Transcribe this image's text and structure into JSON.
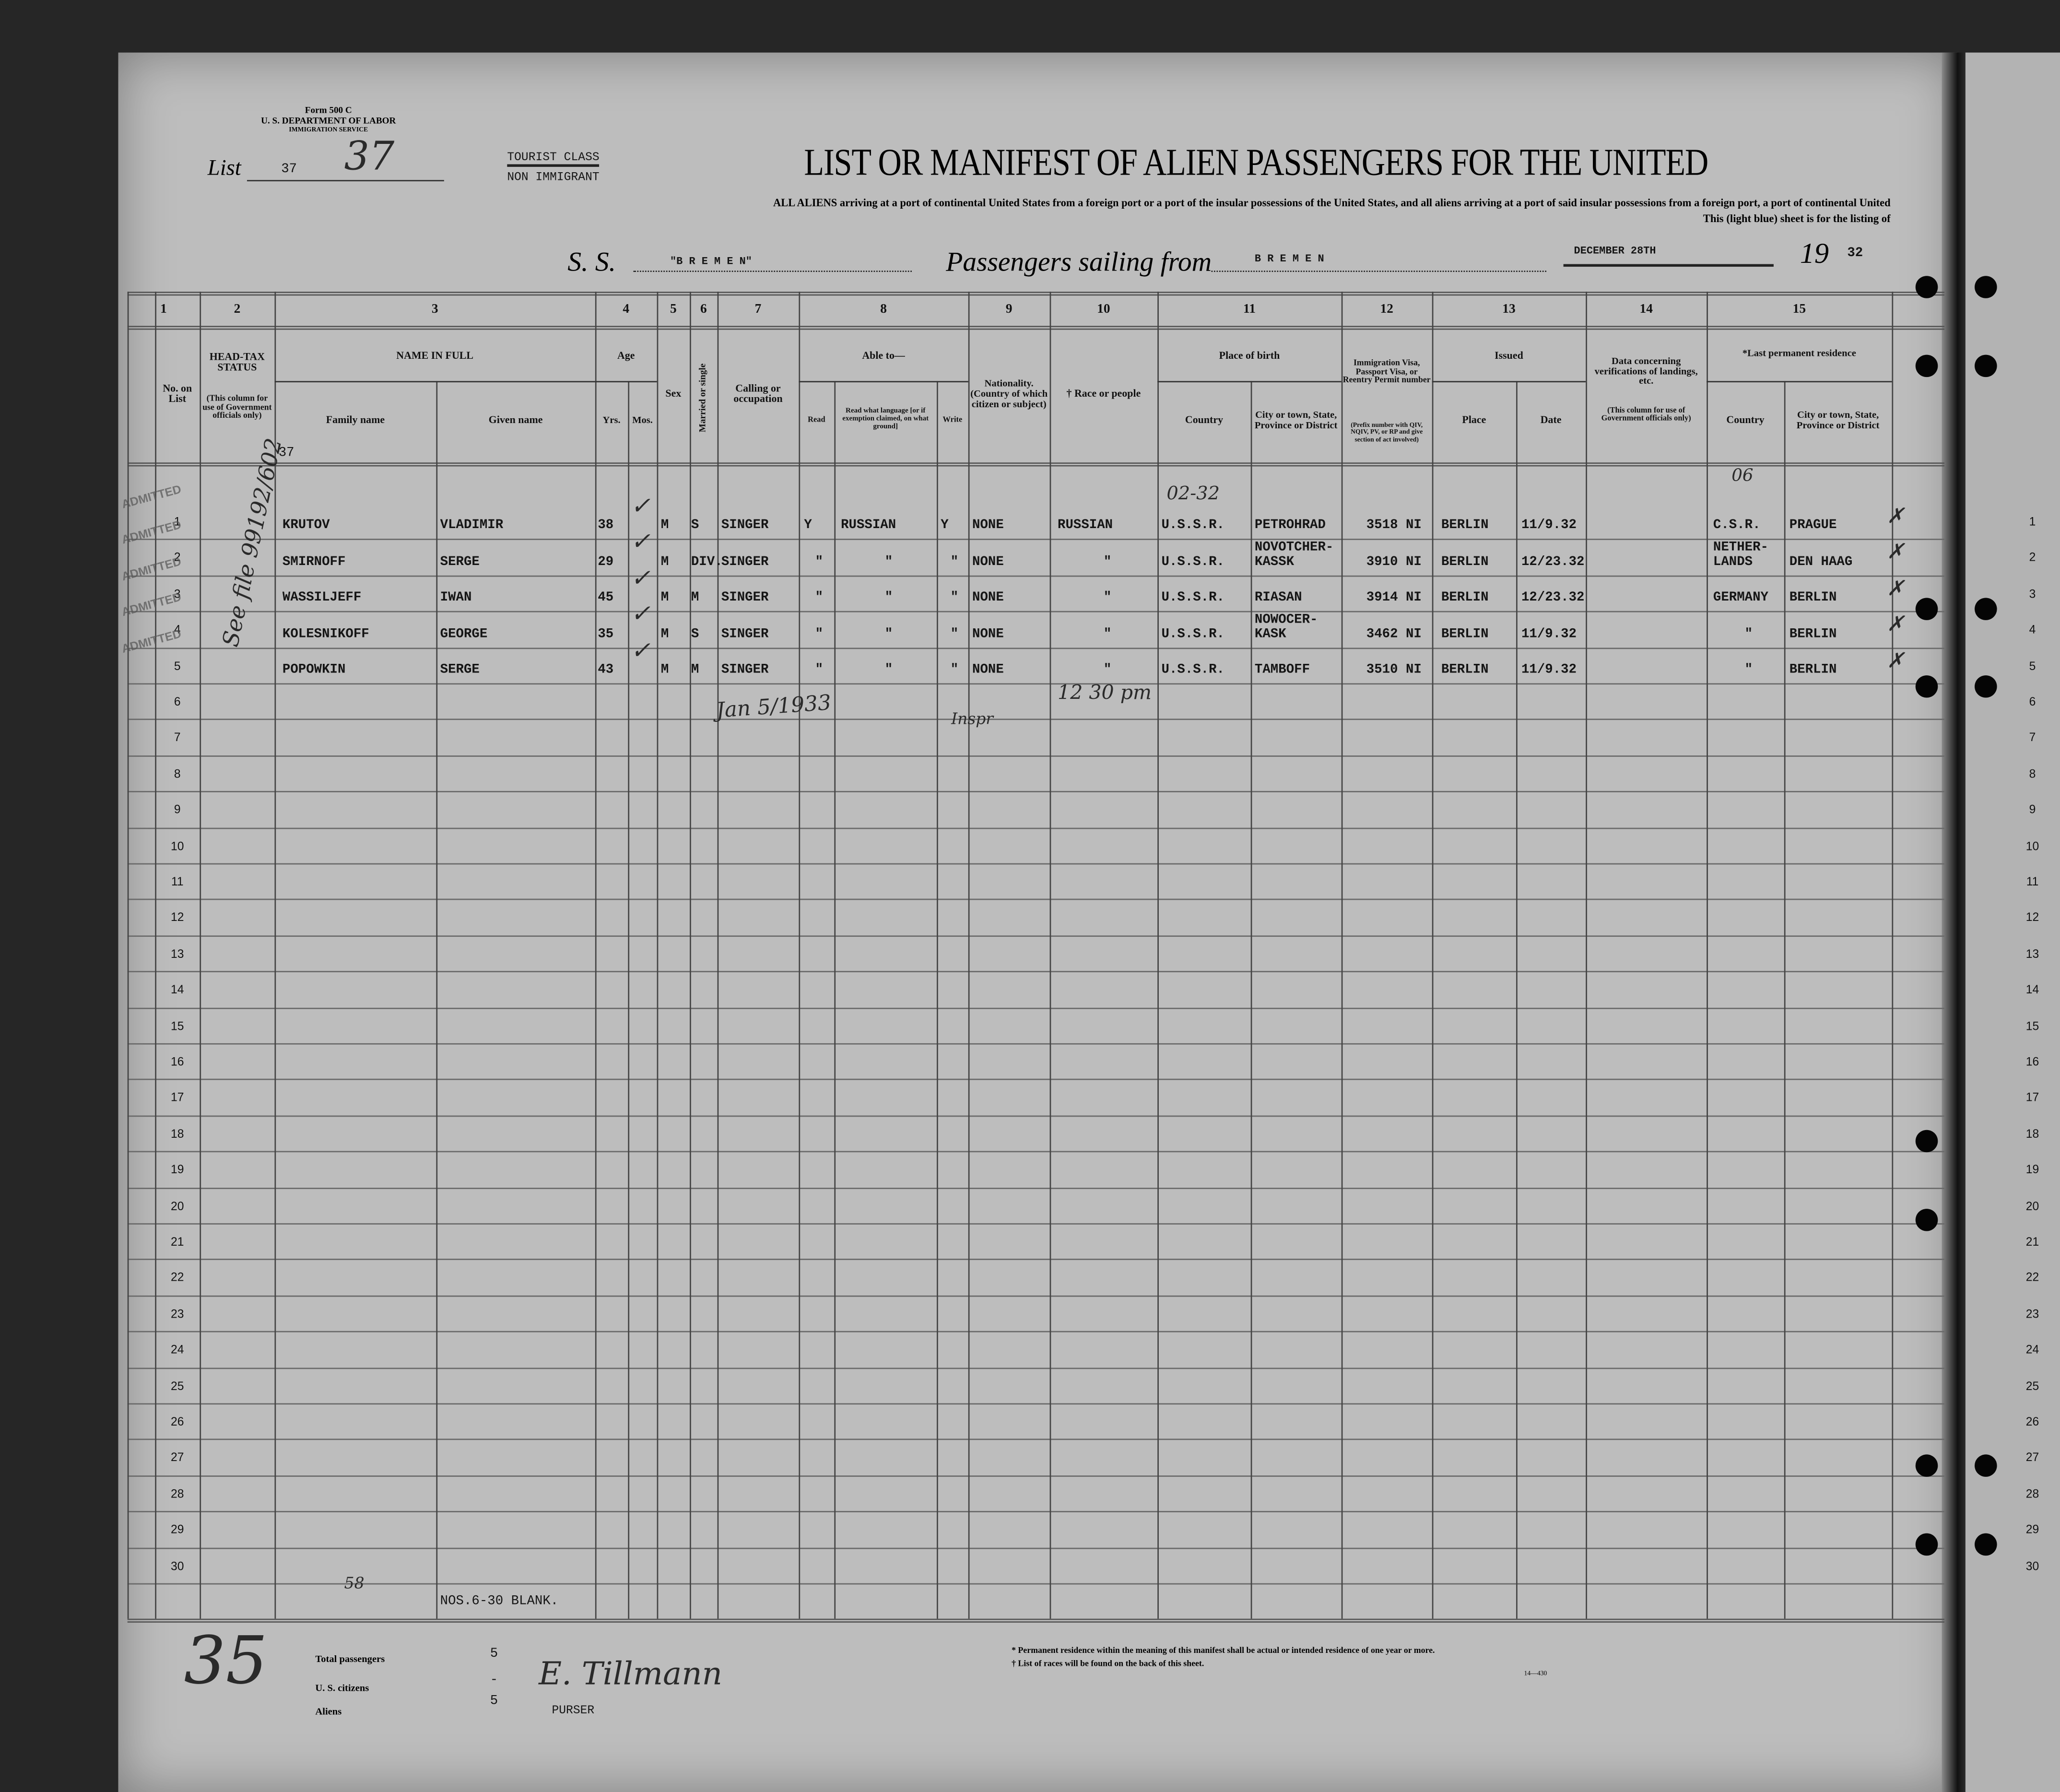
{
  "form": {
    "form_no": "Form 500 C",
    "department": "U. S. DEPARTMENT OF LABOR",
    "service": "IMMIGRATION SERVICE",
    "list_label": "List",
    "list_number_typed": "37",
    "list_number_handwritten": "37",
    "class_line1": "TOURIST CLASS",
    "class_line2": "NON IMMIGRANT",
    "title": "LIST OR MANIFEST OF ALIEN PASSENGERS FOR THE UNITED",
    "subtitle": "ALL ALIENS arriving at a port of continental United States from a foreign port or a port of the insular possessions of the United States, and all aliens arriving at a port of said insular possessions from a foreign port, a port of continental United",
    "subtitle2": "This (light blue) sheet is for the listing of",
    "ss_label": "S. S.",
    "ship": "\"B R E M E N\"",
    "sailing_label": "Passengers sailing from",
    "port": "B R E M E N",
    "date": "DECEMBER 28TH",
    "year_prefix": "19",
    "year_suffix": "32"
  },
  "columns": {
    "numbers": [
      "1",
      "2",
      "3",
      "4",
      "5",
      "6",
      "7",
      "8",
      "9",
      "10",
      "11",
      "12",
      "13",
      "14",
      "15"
    ],
    "no_on_list": "No. on List",
    "head_tax": "HEAD-TAX STATUS",
    "head_tax_note": "(This column for use of Government officials only)",
    "name_in_full": "NAME IN FULL",
    "family_name": "Family name",
    "given_name": "Given name",
    "age": "Age",
    "yrs": "Yrs.",
    "mos": "Mos.",
    "sex": "Sex",
    "married": "Married or single",
    "calling": "Calling or occupation",
    "able_to": "Able to—",
    "read": "Read",
    "read_language": "Read what language [or if exemption claimed, on what ground]",
    "write": "Write",
    "nationality": "Nationality. (Country of which citizen or subject)",
    "race": "† Race or people",
    "place_of_birth": "Place of birth",
    "country": "Country",
    "city": "City or town, State, Province or District",
    "visa": "Immigration Visa, Passport Visa, or Reentry Permit number",
    "visa_note": "(Prefix number with QIV, NQIV, PV, or RP and give section of act involved)",
    "issued": "Issued",
    "place": "Place",
    "issued_date": "Date",
    "verification": "Data concerning verifications of landings, etc.",
    "verification_note": "(This column for use of Government officials only)",
    "last_residence": "*Last permanent residence",
    "res_country": "Country",
    "res_city": "City or town, State, Province or District"
  },
  "rows": [
    {
      "no": "1",
      "family": "KRUTOV",
      "given": "VLADIMIR",
      "yrs": "38",
      "sex": "M",
      "marital": "S",
      "occupation": "SINGER",
      "read": "Y",
      "language": "RUSSIAN",
      "write": "Y",
      "nationality": "NONE",
      "race": "RUSSIAN",
      "birth_country": "U.S.S.R.",
      "birth_city": "PETROHRAD",
      "visa": "3518 NI",
      "issued_place": "BERLIN",
      "issued_date": "11/9.32",
      "res_country": "C.S.R.",
      "res_city": "PRAGUE"
    },
    {
      "no": "2",
      "family": "SMIRNOFF",
      "given": "SERGE",
      "yrs": "29",
      "sex": "M",
      "marital": "DIV.",
      "occupation": "SINGER",
      "read": "\"",
      "language": "\"",
      "write": "\"",
      "nationality": "NONE",
      "race": "\"",
      "birth_country": "U.S.S.R.",
      "birth_city": "NOVOTCHER-\nKASSK",
      "visa": "3910 NI",
      "issued_place": "BERLIN",
      "issued_date": "12/23.32",
      "res_country": "NETHER-\nLANDS",
      "res_city": "DEN HAAG"
    },
    {
      "no": "3",
      "family": "WASSILJEFF",
      "given": "IWAN",
      "yrs": "45",
      "sex": "M",
      "marital": "M",
      "occupation": "SINGER",
      "read": "\"",
      "language": "\"",
      "write": "\"",
      "nationality": "NONE",
      "race": "\"",
      "birth_country": "U.S.S.R.",
      "birth_city": "RIASAN",
      "visa": "3914 NI",
      "issued_place": "BERLIN",
      "issued_date": "12/23.32",
      "res_country": "GERMANY",
      "res_city": "BERLIN"
    },
    {
      "no": "4",
      "family": "KOLESNIKOFF",
      "given": "GEORGE",
      "yrs": "35",
      "sex": "M",
      "marital": "S",
      "occupation": "SINGER",
      "read": "\"",
      "language": "\"",
      "write": "\"",
      "nationality": "NONE",
      "race": "\"",
      "birth_country": "U.S.S.R.",
      "birth_city": "NOWOCER-\nKASK",
      "visa": "3462 NI",
      "issued_place": "BERLIN",
      "issued_date": "11/9.32",
      "res_country": "\"",
      "res_city": "BERLIN"
    },
    {
      "no": "5",
      "family": "POPOWKIN",
      "given": "SERGE",
      "yrs": "43",
      "sex": "M",
      "marital": "M",
      "occupation": "SINGER",
      "read": "\"",
      "language": "\"",
      "write": "\"",
      "nationality": "NONE",
      "race": "\"",
      "birth_country": "U.S.S.R.",
      "birth_city": "TAMBOFF",
      "visa": "3510 NI",
      "issued_place": "BERLIN",
      "issued_date": "11/9.32",
      "res_country": "\"",
      "res_city": "BERLIN"
    }
  ],
  "row_numbers": [
    "1",
    "2",
    "3",
    "4",
    "5",
    "6",
    "7",
    "8",
    "9",
    "10",
    "11",
    "12",
    "13",
    "14",
    "15",
    "16",
    "17",
    "18",
    "19",
    "20",
    "21",
    "22",
    "23",
    "24",
    "25",
    "26",
    "27",
    "28",
    "29",
    "30"
  ],
  "annotations": {
    "list_number_top": "37",
    "stamp": "ADMITTED",
    "birth_note": "02-32",
    "residence_note": "06",
    "head_tax_hand": "See file 99192/602",
    "inspection_note": "Jan 5/1933",
    "inspector": "Inspr",
    "time": "12 30 pm",
    "blank_note": "NOS.6-30 BLANK.",
    "margin_number": "35",
    "tally": "58"
  },
  "footer": {
    "total_label": "Total passengers",
    "total_value": "5",
    "citizens_label": "U. S. citizens",
    "citizens_value": "-",
    "aliens_label": "Aliens",
    "aliens_value": "5",
    "purser": "PURSER",
    "note1": "* Permanent residence within the meaning of this manifest shall be actual or intended residence of one year or more.",
    "note2": "† List of races will be found on the back of this sheet.",
    "form_code": "14—430"
  },
  "colors": {
    "paper": "#bdbdbd",
    "ink": "#111111",
    "frame": "#1a1a1a"
  }
}
